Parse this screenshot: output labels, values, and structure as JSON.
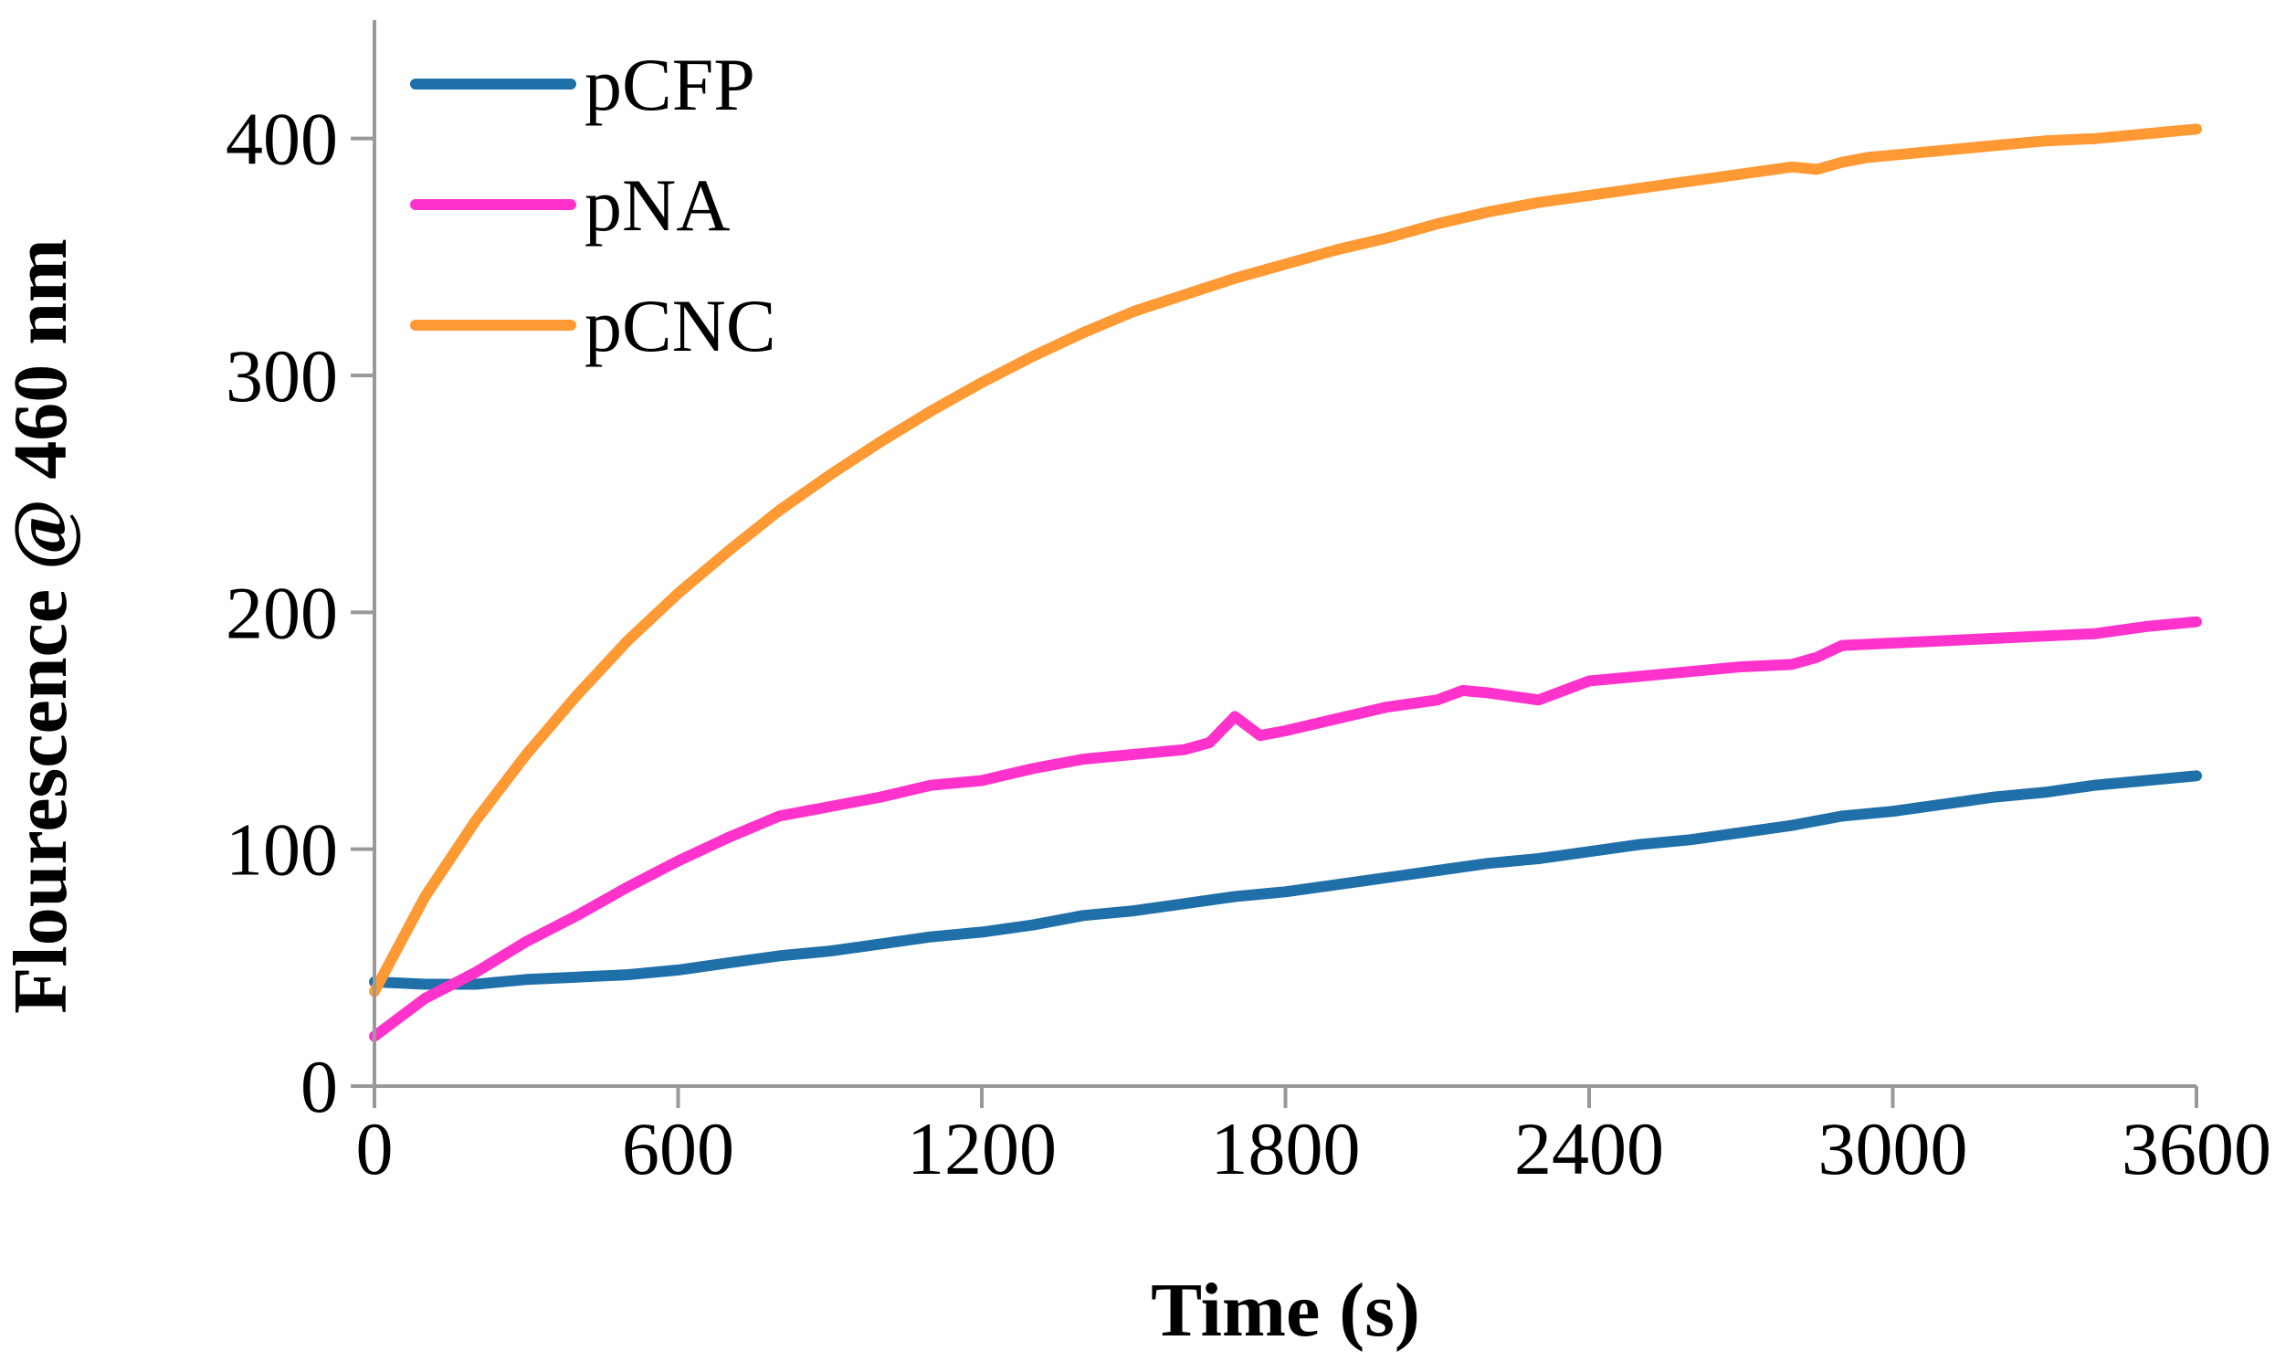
{
  "chart_data": {
    "type": "line",
    "title": "",
    "xlabel": "Time (s)",
    "ylabel": "Flourescence @ 460 nm",
    "xlim": [
      0,
      3600
    ],
    "ylim": [
      0,
      450
    ],
    "xticks": [
      0,
      600,
      1200,
      1800,
      2400,
      3000,
      3600
    ],
    "yticks": [
      0,
      100,
      200,
      300,
      400
    ],
    "grid": false,
    "legend_position": "top-left",
    "series": [
      {
        "name": "pCFP",
        "color": "#1f6fa8",
        "x": [
          0,
          100,
          200,
          300,
          400,
          500,
          600,
          700,
          800,
          900,
          1000,
          1100,
          1200,
          1300,
          1400,
          1500,
          1600,
          1700,
          1800,
          1900,
          2000,
          2100,
          2200,
          2300,
          2400,
          2500,
          2600,
          2700,
          2800,
          2900,
          3000,
          3100,
          3200,
          3300,
          3400,
          3500,
          3600
        ],
        "values": [
          44,
          43,
          43,
          45,
          46,
          47,
          49,
          52,
          55,
          57,
          60,
          63,
          65,
          68,
          72,
          74,
          77,
          80,
          82,
          85,
          88,
          91,
          94,
          96,
          99,
          102,
          104,
          107,
          110,
          114,
          116,
          119,
          122,
          124,
          127,
          129,
          131
        ]
      },
      {
        "name": "pNA",
        "color": "#ff33cc",
        "x": [
          0,
          100,
          200,
          300,
          400,
          500,
          600,
          700,
          800,
          900,
          1000,
          1100,
          1200,
          1300,
          1400,
          1500,
          1600,
          1650,
          1700,
          1750,
          1800,
          1900,
          2000,
          2100,
          2150,
          2200,
          2300,
          2400,
          2500,
          2600,
          2700,
          2800,
          2850,
          2900,
          3000,
          3100,
          3200,
          3300,
          3400,
          3500,
          3600
        ],
        "values": [
          21,
          37,
          48,
          61,
          72,
          84,
          95,
          105,
          114,
          118,
          122,
          127,
          129,
          134,
          138,
          140,
          142,
          145,
          156,
          148,
          150,
          155,
          160,
          163,
          167,
          166,
          163,
          171,
          173,
          175,
          177,
          178,
          181,
          186,
          187,
          188,
          189,
          190,
          191,
          194,
          196
        ]
      },
      {
        "name": "pCNC",
        "color": "#ff9933",
        "x": [
          0,
          100,
          200,
          300,
          400,
          500,
          600,
          700,
          800,
          900,
          1000,
          1100,
          1200,
          1300,
          1400,
          1500,
          1600,
          1700,
          1800,
          1900,
          2000,
          2100,
          2200,
          2300,
          2400,
          2500,
          2600,
          2700,
          2800,
          2850,
          2900,
          2950,
          3000,
          3100,
          3200,
          3300,
          3400,
          3500,
          3600
        ],
        "values": [
          40,
          80,
          112,
          140,
          165,
          188,
          208,
          226,
          243,
          258,
          272,
          285,
          297,
          308,
          318,
          327,
          334,
          341,
          347,
          353,
          358,
          364,
          369,
          373,
          376,
          379,
          382,
          385,
          388,
          387,
          390,
          392,
          393,
          395,
          397,
          399,
          400,
          402,
          404
        ]
      }
    ]
  }
}
